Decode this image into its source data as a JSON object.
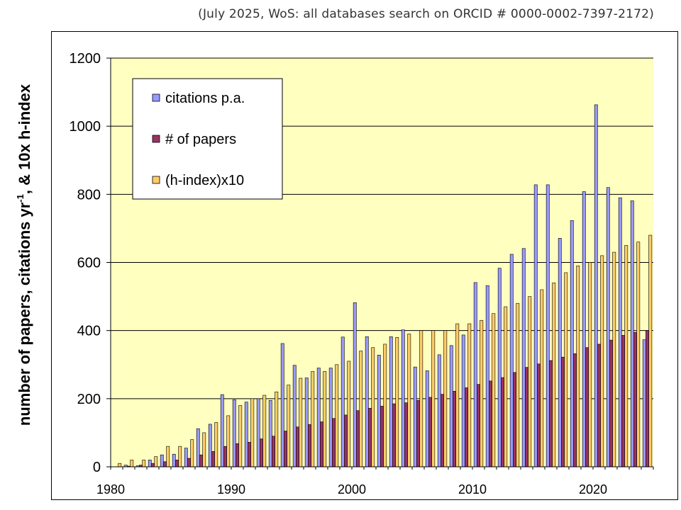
{
  "note": "(July 2025, WoS: all databases search on ORCID # 0000-0002-7397-2172)",
  "colors": {
    "plot_bg": "#ffffc0",
    "citations": "#9999ff",
    "papers": "#993366",
    "hindex": "#ffcc66"
  },
  "chart_data": {
    "type": "bar",
    "title": "",
    "xlabel": "",
    "ylabel_main": "number of papers, citations yr",
    "ylabel_sup": "-1",
    "ylabel_tail": ", & 10x h-index",
    "xlim": [
      1980,
      2025
    ],
    "ylim": [
      0,
      1200
    ],
    "xticks": [
      "1980",
      "1990",
      "2000",
      "2010",
      "2020"
    ],
    "yticks": [
      "0",
      "200",
      "400",
      "600",
      "800",
      "1000",
      "1200"
    ],
    "grid": "horizontal",
    "legend_position": "top-left",
    "x": [
      1981,
      1982,
      1983,
      1984,
      1985,
      1986,
      1987,
      1988,
      1989,
      1990,
      1991,
      1992,
      1993,
      1994,
      1995,
      1996,
      1997,
      1998,
      1999,
      2000,
      2001,
      2002,
      2003,
      2004,
      2005,
      2006,
      2007,
      2008,
      2009,
      2010,
      2011,
      2012,
      2013,
      2014,
      2015,
      2016,
      2017,
      2018,
      2019,
      2020,
      2021,
      2022,
      2023,
      2024,
      2025
    ],
    "series": [
      {
        "name": "citations p.a.",
        "key": "citations",
        "values": [
          0,
          5,
          3,
          20,
          35,
          37,
          55,
          112,
          125,
          212,
          197,
          190,
          200,
          195,
          362,
          298,
          261,
          290,
          290,
          381,
          482,
          382,
          328,
          382,
          402,
          293,
          282,
          329,
          356,
          387,
          541,
          532,
          583,
          624,
          641,
          828,
          828,
          671,
          723,
          808,
          1063,
          820,
          790,
          781,
          373
        ]
      },
      {
        "name": "# of papers",
        "key": "papers",
        "values": [
          0,
          2,
          5,
          10,
          15,
          20,
          25,
          35,
          45,
          60,
          68,
          72,
          82,
          90,
          105,
          117,
          124,
          132,
          142,
          152,
          165,
          172,
          178,
          185,
          188,
          195,
          204,
          213,
          222,
          232,
          242,
          252,
          262,
          277,
          292,
          302,
          312,
          322,
          332,
          350,
          360,
          372,
          386,
          395,
          400
        ]
      },
      {
        "name": "(h-index)x10",
        "key": "hindex",
        "values": [
          10,
          20,
          20,
          30,
          60,
          60,
          80,
          100,
          130,
          150,
          180,
          200,
          210,
          220,
          240,
          260,
          280,
          280,
          300,
          310,
          340,
          350,
          360,
          380,
          390,
          400,
          400,
          400,
          420,
          420,
          430,
          450,
          470,
          480,
          500,
          520,
          540,
          570,
          590,
          600,
          620,
          630,
          650,
          660,
          680
        ]
      }
    ]
  }
}
